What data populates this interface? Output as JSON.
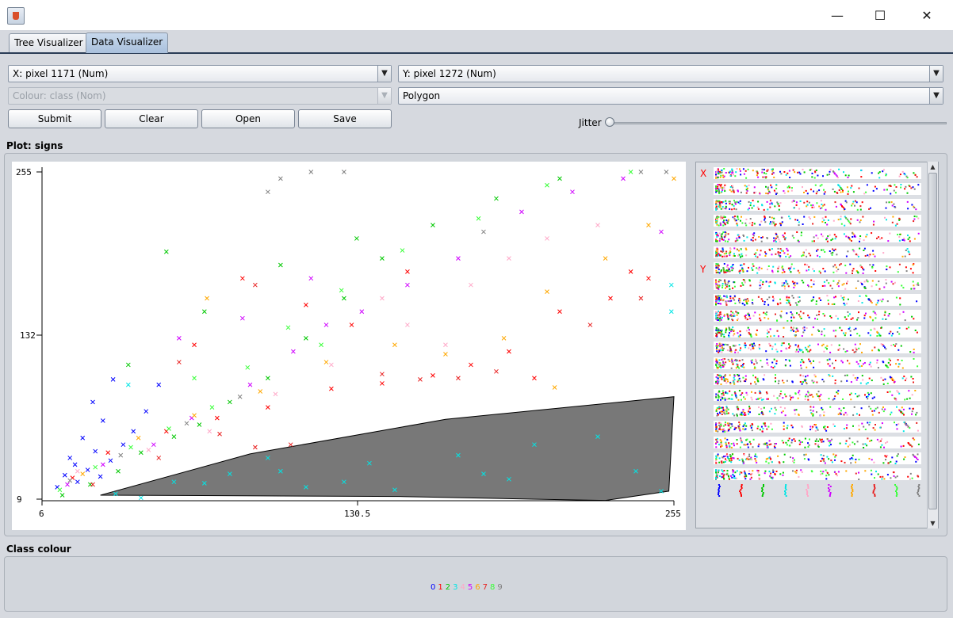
{
  "window": {
    "minimize": "—",
    "maximize": "☐",
    "close": "✕"
  },
  "tabs": [
    "Tree Visualizer",
    "Data Visualizer"
  ],
  "controls": {
    "x_axis": "X: pixel 1171 (Num)",
    "y_axis": "Y: pixel 1272 (Num)",
    "colour": "Colour: class (Nom)",
    "shape": "Polygon",
    "buttons": [
      "Submit",
      "Clear",
      "Open",
      "Save"
    ],
    "jitter_label": "Jitter",
    "jitter_value": 0
  },
  "plot_label": "Plot: signs",
  "attribute_panel": {
    "x_marker": "X",
    "y_marker": "Y"
  },
  "class_colour_label": "Class colour",
  "chart_data": {
    "type": "scatter",
    "title": "",
    "x_ticks": [
      "6",
      "130.5",
      "255"
    ],
    "y_ticks": [
      "255",
      "132",
      "9"
    ],
    "xlim": [
      6,
      255
    ],
    "ylim": [
      9,
      255
    ],
    "classes": [
      "0",
      "1",
      "2",
      "3",
      "4",
      "5",
      "6",
      "7",
      "8",
      "9"
    ],
    "class_colors": [
      "#0000ff",
      "#ff0000",
      "#00c800",
      "#00e5e5",
      "#ffa8c8",
      "#d000ff",
      "#ffa800",
      "#e81f1f",
      "#38ff38",
      "#808080"
    ],
    "selection_polygon": [
      [
        29,
        12
      ],
      [
        88,
        43
      ],
      [
        165,
        69
      ],
      [
        255,
        86
      ],
      [
        253,
        15
      ],
      [
        228,
        8
      ],
      [
        199,
        9
      ],
      [
        147,
        11
      ]
    ],
    "points": [
      {
        "c": 0,
        "x": 12,
        "y": 18
      },
      {
        "c": 0,
        "x": 15,
        "y": 27
      },
      {
        "c": 0,
        "x": 20,
        "y": 22
      },
      {
        "c": 0,
        "x": 24,
        "y": 31
      },
      {
        "c": 0,
        "x": 17,
        "y": 40
      },
      {
        "c": 0,
        "x": 27,
        "y": 45
      },
      {
        "c": 0,
        "x": 33,
        "y": 38
      },
      {
        "c": 0,
        "x": 38,
        "y": 50
      },
      {
        "c": 0,
        "x": 22,
        "y": 55
      },
      {
        "c": 0,
        "x": 42,
        "y": 60
      },
      {
        "c": 0,
        "x": 30,
        "y": 68
      },
      {
        "c": 0,
        "x": 47,
        "y": 75
      },
      {
        "c": 0,
        "x": 26,
        "y": 82
      },
      {
        "c": 0,
        "x": 52,
        "y": 95
      },
      {
        "c": 0,
        "x": 34,
        "y": 99
      },
      {
        "c": 0,
        "x": 19,
        "y": 35
      },
      {
        "c": 0,
        "x": 29,
        "y": 26
      },
      {
        "c": 1,
        "x": 18,
        "y": 25
      },
      {
        "c": 1,
        "x": 32,
        "y": 44
      },
      {
        "c": 1,
        "x": 55,
        "y": 60
      },
      {
        "c": 1,
        "x": 75,
        "y": 70
      },
      {
        "c": 1,
        "x": 95,
        "y": 78
      },
      {
        "c": 1,
        "x": 120,
        "y": 92
      },
      {
        "c": 1,
        "x": 140,
        "y": 96
      },
      {
        "c": 1,
        "x": 160,
        "y": 102
      },
      {
        "c": 1,
        "x": 175,
        "y": 110
      },
      {
        "c": 1,
        "x": 190,
        "y": 120
      },
      {
        "c": 1,
        "x": 210,
        "y": 150
      },
      {
        "c": 1,
        "x": 230,
        "y": 160
      },
      {
        "c": 1,
        "x": 245,
        "y": 175
      },
      {
        "c": 1,
        "x": 85,
        "y": 175
      },
      {
        "c": 1,
        "x": 110,
        "y": 155
      },
      {
        "c": 1,
        "x": 128,
        "y": 140
      },
      {
        "c": 1,
        "x": 66,
        "y": 125
      },
      {
        "c": 1,
        "x": 150,
        "y": 180
      },
      {
        "c": 1,
        "x": 200,
        "y": 100
      },
      {
        "c": 1,
        "x": 238,
        "y": 180
      },
      {
        "c": 2,
        "x": 14,
        "y": 12
      },
      {
        "c": 2,
        "x": 25,
        "y": 20
      },
      {
        "c": 2,
        "x": 36,
        "y": 30
      },
      {
        "c": 2,
        "x": 45,
        "y": 44
      },
      {
        "c": 2,
        "x": 58,
        "y": 56
      },
      {
        "c": 2,
        "x": 68,
        "y": 65
      },
      {
        "c": 2,
        "x": 80,
        "y": 82
      },
      {
        "c": 2,
        "x": 95,
        "y": 100
      },
      {
        "c": 2,
        "x": 110,
        "y": 130
      },
      {
        "c": 2,
        "x": 125,
        "y": 160
      },
      {
        "c": 2,
        "x": 140,
        "y": 190
      },
      {
        "c": 2,
        "x": 160,
        "y": 215
      },
      {
        "c": 2,
        "x": 185,
        "y": 235
      },
      {
        "c": 2,
        "x": 210,
        "y": 250
      },
      {
        "c": 2,
        "x": 55,
        "y": 195
      },
      {
        "c": 2,
        "x": 70,
        "y": 150
      },
      {
        "c": 2,
        "x": 40,
        "y": 110
      },
      {
        "c": 2,
        "x": 100,
        "y": 185
      },
      {
        "c": 2,
        "x": 130,
        "y": 205
      },
      {
        "c": 3,
        "x": 35,
        "y": 13
      },
      {
        "c": 3,
        "x": 45,
        "y": 10
      },
      {
        "c": 3,
        "x": 70,
        "y": 21
      },
      {
        "c": 3,
        "x": 80,
        "y": 28
      },
      {
        "c": 3,
        "x": 95,
        "y": 40
      },
      {
        "c": 3,
        "x": 110,
        "y": 18
      },
      {
        "c": 3,
        "x": 125,
        "y": 22
      },
      {
        "c": 3,
        "x": 145,
        "y": 16
      },
      {
        "c": 3,
        "x": 170,
        "y": 42
      },
      {
        "c": 3,
        "x": 180,
        "y": 28
      },
      {
        "c": 3,
        "x": 200,
        "y": 50
      },
      {
        "c": 3,
        "x": 225,
        "y": 56
      },
      {
        "c": 3,
        "x": 240,
        "y": 30
      },
      {
        "c": 3,
        "x": 250,
        "y": 15
      },
      {
        "c": 3,
        "x": 58,
        "y": 22
      },
      {
        "c": 3,
        "x": 100,
        "y": 30
      },
      {
        "c": 3,
        "x": 135,
        "y": 36
      },
      {
        "c": 3,
        "x": 190,
        "y": 24
      },
      {
        "c": 3,
        "x": 254,
        "y": 150
      },
      {
        "c": 3,
        "x": 254,
        "y": 170
      },
      {
        "c": 3,
        "x": 40,
        "y": 95
      },
      {
        "c": 4,
        "x": 20,
        "y": 30
      },
      {
        "c": 4,
        "x": 48,
        "y": 46
      },
      {
        "c": 4,
        "x": 72,
        "y": 60
      },
      {
        "c": 4,
        "x": 98,
        "y": 88
      },
      {
        "c": 4,
        "x": 120,
        "y": 110
      },
      {
        "c": 4,
        "x": 150,
        "y": 140
      },
      {
        "c": 4,
        "x": 175,
        "y": 170
      },
      {
        "c": 4,
        "x": 190,
        "y": 190
      },
      {
        "c": 4,
        "x": 205,
        "y": 205
      },
      {
        "c": 4,
        "x": 225,
        "y": 215
      },
      {
        "c": 4,
        "x": 165,
        "y": 125
      },
      {
        "c": 4,
        "x": 140,
        "y": 160
      },
      {
        "c": 5,
        "x": 16,
        "y": 20
      },
      {
        "c": 5,
        "x": 30,
        "y": 35
      },
      {
        "c": 5,
        "x": 50,
        "y": 50
      },
      {
        "c": 5,
        "x": 65,
        "y": 70
      },
      {
        "c": 5,
        "x": 88,
        "y": 95
      },
      {
        "c": 5,
        "x": 105,
        "y": 120
      },
      {
        "c": 5,
        "x": 118,
        "y": 140
      },
      {
        "c": 5,
        "x": 132,
        "y": 150
      },
      {
        "c": 5,
        "x": 150,
        "y": 170
      },
      {
        "c": 5,
        "x": 170,
        "y": 190
      },
      {
        "c": 5,
        "x": 195,
        "y": 225
      },
      {
        "c": 5,
        "x": 215,
        "y": 240
      },
      {
        "c": 5,
        "x": 235,
        "y": 250
      },
      {
        "c": 5,
        "x": 60,
        "y": 130
      },
      {
        "c": 5,
        "x": 85,
        "y": 145
      },
      {
        "c": 5,
        "x": 112,
        "y": 175
      },
      {
        "c": 5,
        "x": 250,
        "y": 210
      },
      {
        "c": 6,
        "x": 22,
        "y": 28
      },
      {
        "c": 6,
        "x": 44,
        "y": 55
      },
      {
        "c": 6,
        "x": 66,
        "y": 72
      },
      {
        "c": 6,
        "x": 92,
        "y": 90
      },
      {
        "c": 6,
        "x": 118,
        "y": 112
      },
      {
        "c": 6,
        "x": 145,
        "y": 125
      },
      {
        "c": 6,
        "x": 165,
        "y": 118
      },
      {
        "c": 6,
        "x": 188,
        "y": 130
      },
      {
        "c": 6,
        "x": 208,
        "y": 93
      },
      {
        "c": 6,
        "x": 228,
        "y": 190
      },
      {
        "c": 6,
        "x": 245,
        "y": 215
      },
      {
        "c": 6,
        "x": 255,
        "y": 250
      },
      {
        "c": 6,
        "x": 205,
        "y": 165
      },
      {
        "c": 6,
        "x": 71,
        "y": 160
      },
      {
        "c": 7,
        "x": 26,
        "y": 20
      },
      {
        "c": 7,
        "x": 52,
        "y": 40
      },
      {
        "c": 7,
        "x": 76,
        "y": 58
      },
      {
        "c": 7,
        "x": 90,
        "y": 48
      },
      {
        "c": 7,
        "x": 104,
        "y": 50
      },
      {
        "c": 7,
        "x": 140,
        "y": 103
      },
      {
        "c": 7,
        "x": 155,
        "y": 99
      },
      {
        "c": 7,
        "x": 170,
        "y": 100
      },
      {
        "c": 7,
        "x": 185,
        "y": 105
      },
      {
        "c": 7,
        "x": 222,
        "y": 140
      },
      {
        "c": 7,
        "x": 60,
        "y": 112
      },
      {
        "c": 7,
        "x": 90,
        "y": 170
      },
      {
        "c": 7,
        "x": 242,
        "y": 160
      },
      {
        "c": 8,
        "x": 13,
        "y": 16
      },
      {
        "c": 8,
        "x": 27,
        "y": 33
      },
      {
        "c": 8,
        "x": 41,
        "y": 48
      },
      {
        "c": 8,
        "x": 56,
        "y": 62
      },
      {
        "c": 8,
        "x": 73,
        "y": 78
      },
      {
        "c": 8,
        "x": 87,
        "y": 108
      },
      {
        "c": 8,
        "x": 103,
        "y": 138
      },
      {
        "c": 8,
        "x": 124,
        "y": 166
      },
      {
        "c": 8,
        "x": 148,
        "y": 196
      },
      {
        "c": 8,
        "x": 178,
        "y": 220
      },
      {
        "c": 8,
        "x": 205,
        "y": 245
      },
      {
        "c": 8,
        "x": 238,
        "y": 255
      },
      {
        "c": 8,
        "x": 66,
        "y": 100
      },
      {
        "c": 8,
        "x": 116,
        "y": 125
      },
      {
        "c": 9,
        "x": 17,
        "y": 23
      },
      {
        "c": 9,
        "x": 37,
        "y": 42
      },
      {
        "c": 9,
        "x": 63,
        "y": 66
      },
      {
        "c": 9,
        "x": 84,
        "y": 86
      },
      {
        "c": 9,
        "x": 95,
        "y": 240
      },
      {
        "c": 9,
        "x": 100,
        "y": 250
      },
      {
        "c": 9,
        "x": 112,
        "y": 255
      },
      {
        "c": 9,
        "x": 125,
        "y": 255
      },
      {
        "c": 9,
        "x": 180,
        "y": 210
      },
      {
        "c": 9,
        "x": 242,
        "y": 255
      },
      {
        "c": 9,
        "x": 252,
        "y": 255
      }
    ]
  }
}
